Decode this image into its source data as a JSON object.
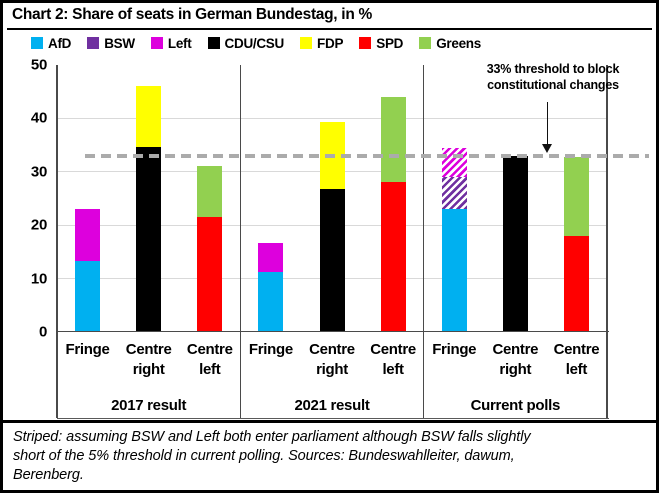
{
  "chart_data": {
    "type": "bar",
    "stacked": true,
    "title": "Chart 2: Share of seats in German Bundestag, in %",
    "ylabel": "",
    "xlabel": "",
    "ylim": [
      0,
      50
    ],
    "yticks": [
      0,
      10,
      20,
      30,
      40,
      50
    ],
    "grid": "horizontal",
    "legend_position": "top",
    "legend": [
      {
        "label": "AfD",
        "color": "#00B0F0"
      },
      {
        "label": "BSW",
        "color": "#7030A0"
      },
      {
        "label": "Left",
        "color": "#DD00DD"
      },
      {
        "label": "CDU/CSU",
        "color": "#000000"
      },
      {
        "label": "FDP",
        "color": "#FFFF00"
      },
      {
        "label": "SPD",
        "color": "#FF0000"
      },
      {
        "label": "Greens",
        "color": "#92D050"
      }
    ],
    "threshold": {
      "value": 33,
      "label": "33% threshold to block constitutional changes"
    },
    "groups": [
      {
        "label": "2017 result",
        "bars": [
          {
            "category": "Fringe",
            "segments": [
              {
                "party": "AfD",
                "value": 13.3
              },
              {
                "party": "Left",
                "value": 9.7
              }
            ]
          },
          {
            "category": "Centre right",
            "segments": [
              {
                "party": "CDU/CSU",
                "value": 34.7
              },
              {
                "party": "FDP",
                "value": 11.3
              }
            ]
          },
          {
            "category": "Centre left",
            "segments": [
              {
                "party": "SPD",
                "value": 21.6
              },
              {
                "party": "Greens",
                "value": 9.4
              }
            ]
          }
        ]
      },
      {
        "label": "2021 result",
        "bars": [
          {
            "category": "Fringe",
            "segments": [
              {
                "party": "AfD",
                "value": 11.3
              },
              {
                "party": "Left",
                "value": 5.3
              }
            ]
          },
          {
            "category": "Centre right",
            "segments": [
              {
                "party": "CDU/CSU",
                "value": 26.8
              },
              {
                "party": "FDP",
                "value": 12.5
              }
            ]
          },
          {
            "category": "Centre left",
            "segments": [
              {
                "party": "SPD",
                "value": 28.0
              },
              {
                "party": "Greens",
                "value": 16.0
              }
            ]
          }
        ]
      },
      {
        "label": "Current polls",
        "bars": [
          {
            "category": "Fringe",
            "segments": [
              {
                "party": "AfD",
                "value": 23.0
              },
              {
                "party": "BSW",
                "value": 6.0,
                "striped": true
              },
              {
                "party": "Left",
                "value": 5.5,
                "striped": true
              }
            ]
          },
          {
            "category": "Centre right",
            "segments": [
              {
                "party": "CDU/CSU",
                "value": 33.0
              }
            ]
          },
          {
            "category": "Centre left",
            "segments": [
              {
                "party": "SPD",
                "value": 18.0
              },
              {
                "party": "Greens",
                "value": 14.8
              }
            ]
          }
        ]
      }
    ],
    "footnote": "Striped: assuming BSW and Left both enter parliament although BSW falls slightly short of the 5% threshold in current polling. Sources: Bundeswahlleiter, dawum, Berenberg."
  },
  "colors": {
    "gridline": "#D9D9D9",
    "axis": "#4a4a4a",
    "threshold_line": "#ABABAB",
    "stripe_background": "#FFFFFF"
  }
}
